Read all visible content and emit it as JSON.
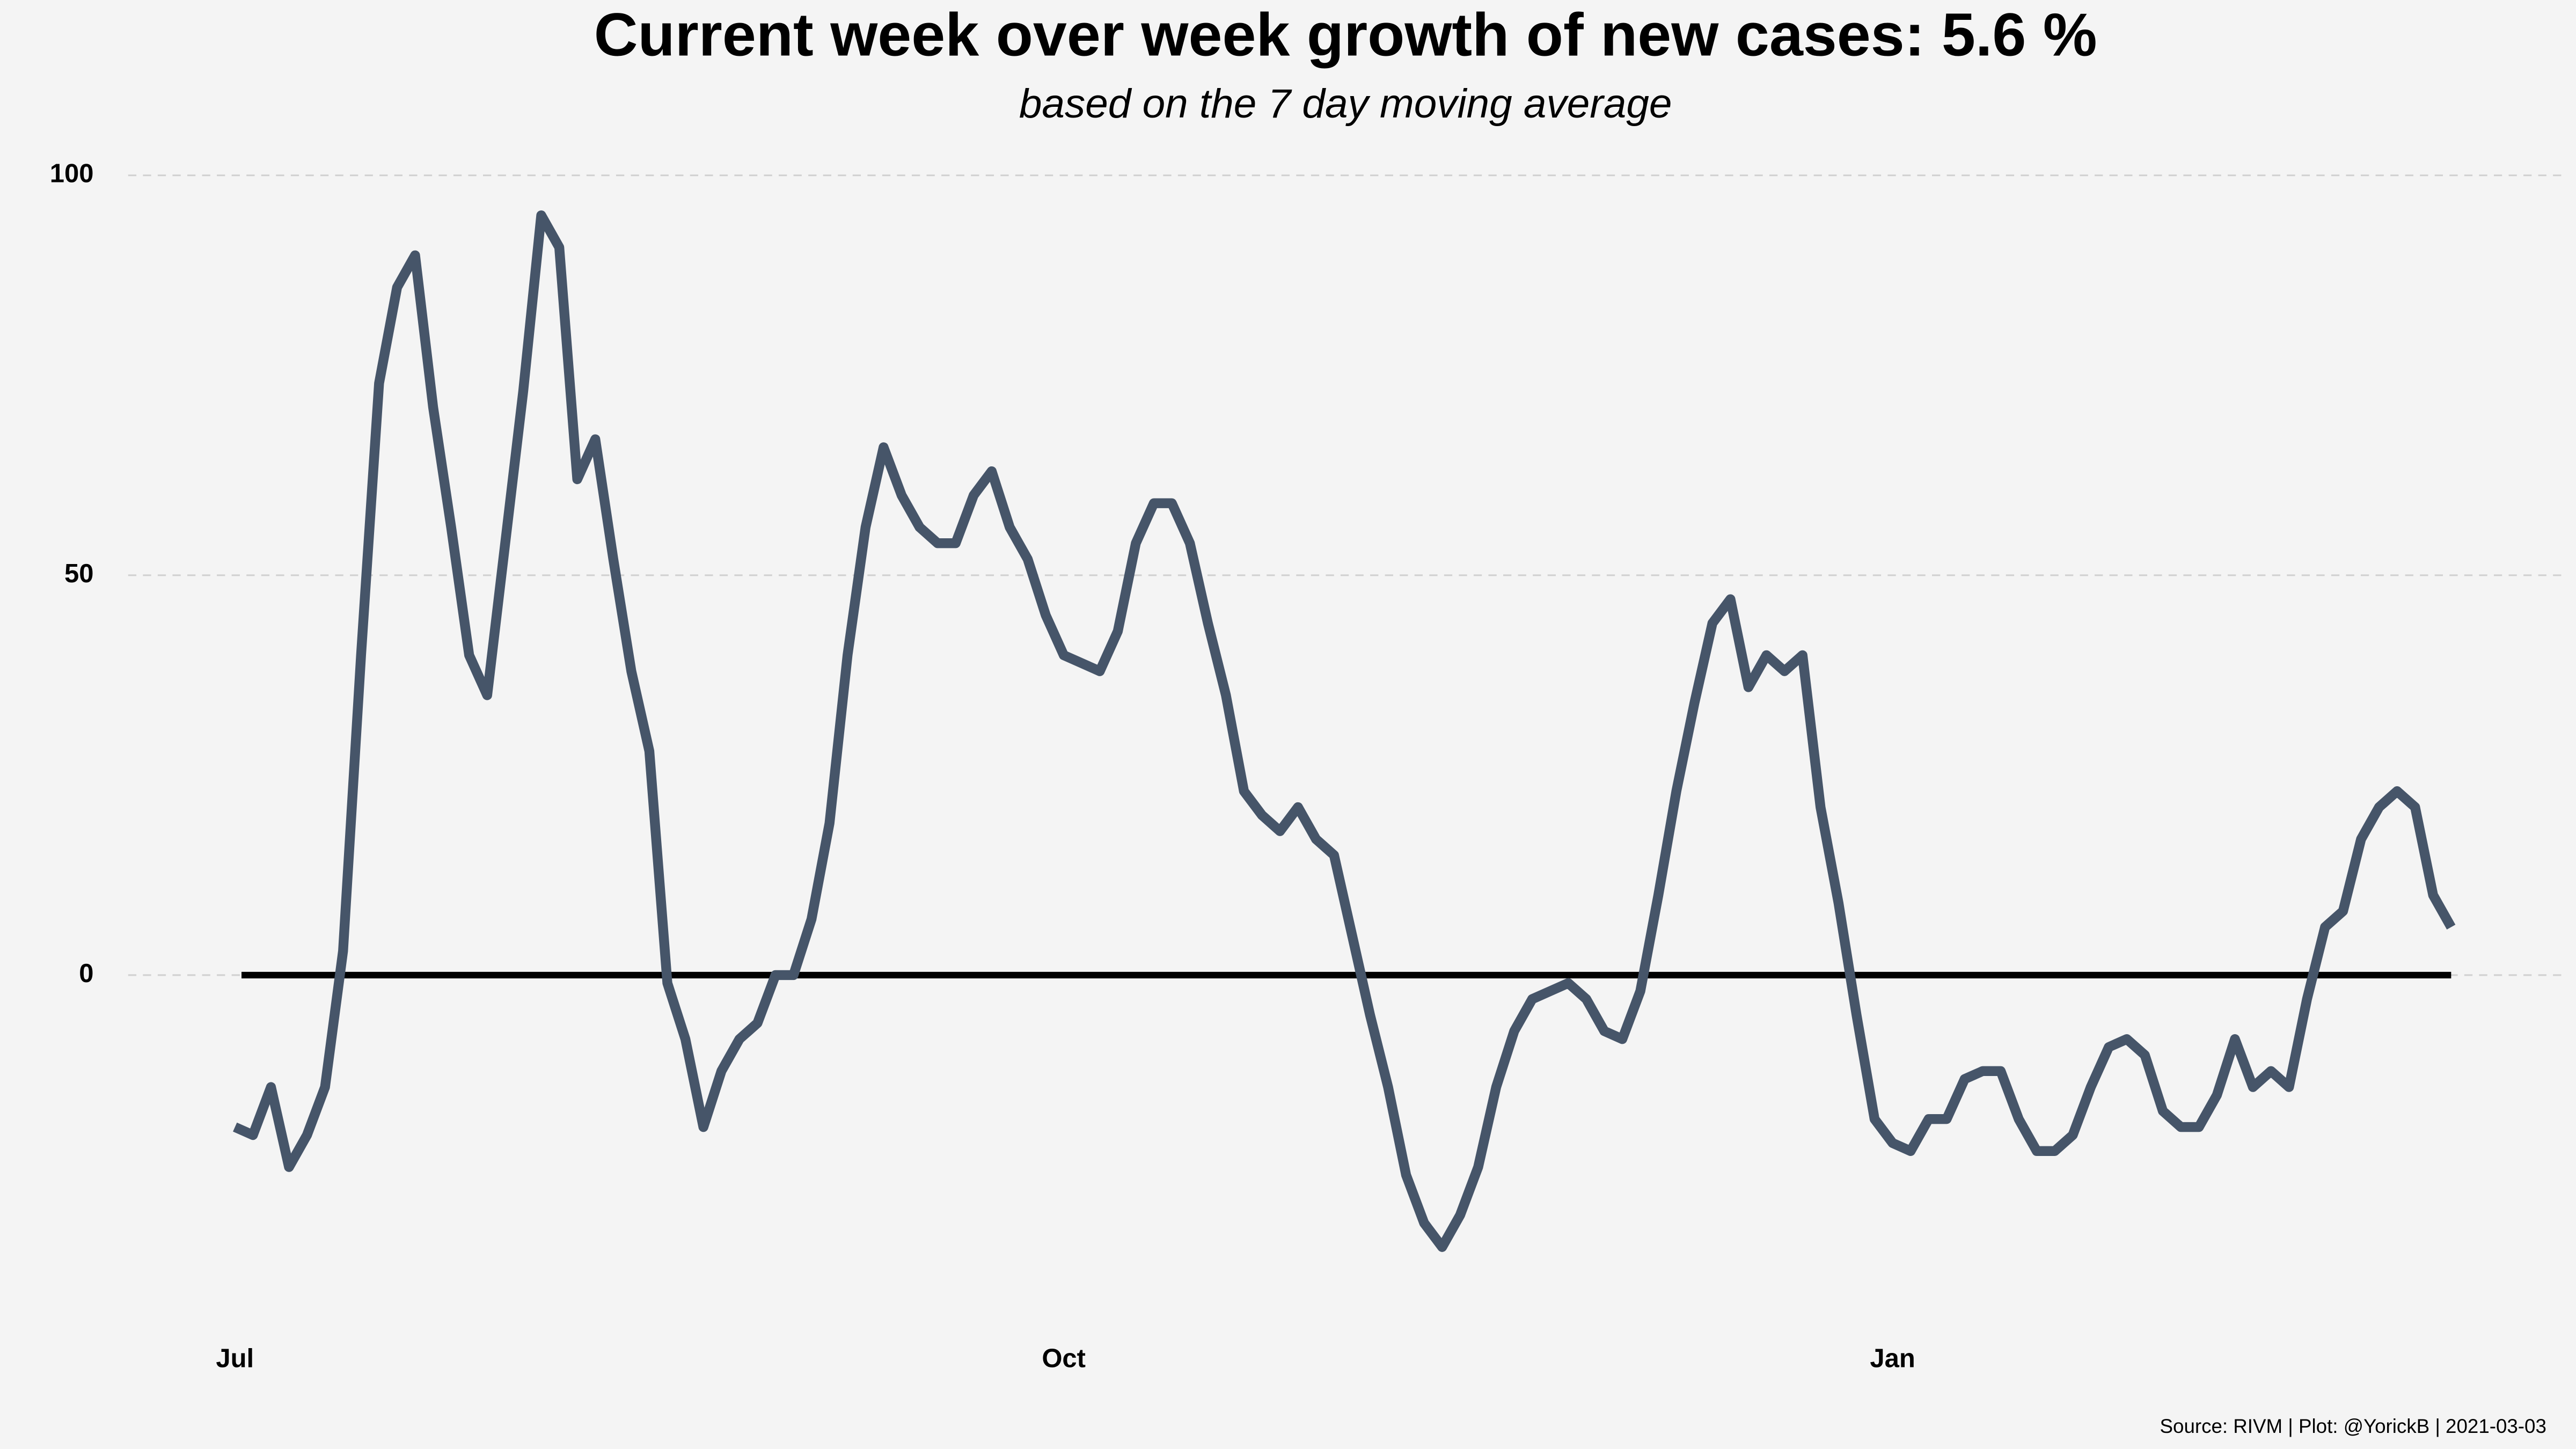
{
  "chart_data": {
    "type": "line",
    "title": "Current week over week growth of new cases:  5.6 %",
    "subtitle": "based on the 7 day moving average",
    "caption": "Source: RIVM | Plot: @YorickB |  2021-03-03",
    "categories": [
      "Jul",
      null,
      null,
      null,
      null,
      null,
      null,
      null,
      null,
      null,
      null,
      null,
      null,
      null,
      null,
      null,
      null,
      null,
      null,
      null,
      null,
      null,
      null,
      null,
      null,
      null,
      null,
      null,
      null,
      null,
      null,
      null,
      null,
      null,
      null,
      null,
      null,
      null,
      null,
      null,
      null,
      null,
      null,
      null,
      null,
      null,
      "Oct",
      null,
      null,
      null,
      null,
      null,
      null,
      null,
      null,
      null,
      null,
      null,
      null,
      null,
      null,
      null,
      null,
      null,
      null,
      null,
      null,
      null,
      null,
      null,
      null,
      null,
      null,
      null,
      null,
      null,
      null,
      null,
      null,
      null,
      null,
      null,
      null,
      null,
      null,
      null,
      null,
      null,
      null,
      null,
      null,
      null,
      "Jan",
      null,
      null,
      null,
      null,
      null,
      null,
      null,
      null,
      null,
      null,
      null,
      null,
      null,
      null,
      null,
      null,
      null,
      null,
      null,
      null,
      null,
      null,
      null,
      null,
      null,
      null,
      null,
      null,
      null,
      null,
      null
    ],
    "series": [
      {
        "name": "week over week growth",
        "color": "#465569",
        "values": [
          -19,
          -20,
          -14,
          -24,
          -20,
          -14,
          3,
          40,
          74,
          86,
          90,
          71,
          56,
          40,
          35,
          54,
          73,
          95,
          91,
          62,
          67,
          52,
          38,
          28,
          -1,
          -8,
          -19,
          -12,
          -8,
          -6,
          0,
          0,
          7,
          19,
          40,
          56,
          66,
          60,
          56,
          54,
          54,
          60,
          63,
          56,
          52,
          45,
          40,
          39,
          38,
          43,
          54,
          59,
          59,
          54,
          44,
          35,
          23,
          20,
          18,
          21,
          17,
          15,
          5,
          -5,
          -14,
          -25,
          -31,
          -34,
          -30,
          -24,
          -14,
          -7,
          -3,
          -2,
          -1,
          -3,
          -7,
          -8,
          -2,
          10,
          23,
          34,
          44,
          47,
          36,
          40,
          38,
          40,
          21,
          9,
          -5,
          -18,
          -21,
          -22,
          -18,
          -18,
          -13,
          -12,
          -12,
          -18,
          -22,
          -22,
          -20,
          -14,
          -9,
          -8,
          -10,
          -17,
          -19,
          -19,
          -15,
          -8,
          -14,
          -12,
          -14,
          -3,
          6,
          8,
          17,
          21,
          23,
          21,
          10,
          6
        ]
      }
    ],
    "ylim": [
      -42,
      102
    ],
    "yticks": [
      0,
      50,
      100
    ],
    "grid": true,
    "hline": 0,
    "hline_color": "#000000",
    "background": "#f4f4f4"
  }
}
